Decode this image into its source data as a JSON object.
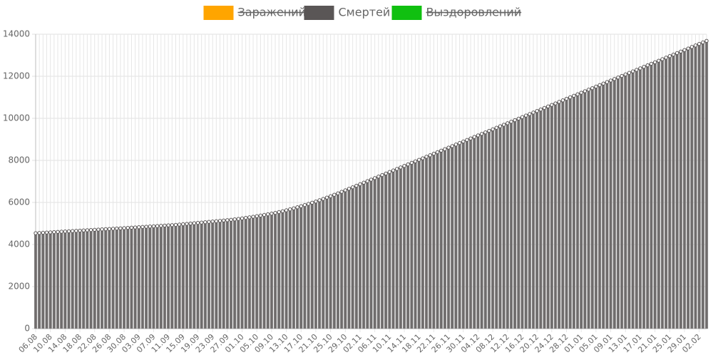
{
  "chart_data": {
    "type": "bar",
    "series": [
      {
        "name": "Заражений",
        "color": "#ffa500",
        "hidden": true
      },
      {
        "name": "Смертей",
        "color": "#5a5656",
        "hidden": false,
        "values": [
          4540,
          4550,
          4560,
          4570,
          4580,
          4590,
          4600,
          4610,
          4620,
          4630,
          4640,
          4650,
          4660,
          4670,
          4680,
          4690,
          4700,
          4710,
          4720,
          4730,
          4740,
          4750,
          4760,
          4770,
          4780,
          4791,
          4802,
          4813,
          4824,
          4835,
          4846,
          4857,
          4868,
          4879,
          4890,
          4901,
          4912,
          4923,
          4934,
          4950,
          4966,
          4982,
          4998,
          5014,
          5030,
          5046,
          5062,
          5078,
          5094,
          5110,
          5126,
          5142,
          5158,
          5176,
          5196,
          5218,
          5242,
          5267,
          5293,
          5320,
          5348,
          5377,
          5407,
          5438,
          5470,
          5505,
          5543,
          5584,
          5628,
          5674,
          5722,
          5772,
          5824,
          5878,
          5933,
          5989,
          6046,
          6106,
          6168,
          6232,
          6298,
          6366,
          6436,
          6507,
          6579,
          6651,
          6724,
          6796,
          6869,
          6941,
          7014,
          7086,
          7159,
          7231,
          7304,
          7376,
          7449,
          7521,
          7594,
          7666,
          7739,
          7811,
          7884,
          7956,
          8029,
          8101,
          8174,
          8246,
          8319,
          8391,
          8464,
          8536,
          8609,
          8681,
          8754,
          8826,
          8899,
          8971,
          9044,
          9116,
          9189,
          9261,
          9334,
          9406,
          9479,
          9551,
          9624,
          9696,
          9769,
          9841,
          9914,
          9986,
          10059,
          10131,
          10204,
          10276,
          10349,
          10421,
          10494,
          10566,
          10639,
          10711,
          10784,
          10856,
          10929,
          11001,
          11074,
          11146,
          11219,
          11291,
          11364,
          11436,
          11509,
          11581,
          11654,
          11726,
          11799,
          11871,
          11944,
          12016,
          12089,
          12161,
          12234,
          12306,
          12379,
          12451,
          12524,
          12596,
          12669,
          12741,
          12814,
          12886,
          12959,
          13031,
          13104,
          13176,
          13249,
          13321,
          13394,
          13466,
          13539,
          13611,
          13684
        ]
      },
      {
        "name": "Выздоровлений",
        "color": "#10c010",
        "hidden": true
      }
    ],
    "categories": [
      "06.08",
      null,
      null,
      null,
      "10.08",
      null,
      null,
      null,
      "14.08",
      null,
      null,
      null,
      "18.08",
      null,
      null,
      null,
      "22.08",
      null,
      null,
      null,
      "26.08",
      null,
      null,
      null,
      "30.08",
      null,
      null,
      null,
      "03.09",
      null,
      null,
      null,
      "07.09",
      null,
      null,
      null,
      "11.09",
      null,
      null,
      null,
      "15.09",
      null,
      null,
      null,
      "19.09",
      null,
      null,
      null,
      "23.09",
      null,
      null,
      null,
      "27.09",
      null,
      null,
      null,
      "01.10",
      null,
      null,
      null,
      "05.10",
      null,
      null,
      null,
      "09.10",
      null,
      null,
      null,
      "13.10",
      null,
      null,
      null,
      "17.10",
      null,
      null,
      null,
      "21.10",
      null,
      null,
      null,
      "25.10",
      null,
      null,
      null,
      "29.10",
      null,
      null,
      null,
      "02.11",
      null,
      null,
      null,
      "06.11",
      null,
      null,
      null,
      "10.11",
      null,
      null,
      null,
      "14.11",
      null,
      null,
      null,
      "18.11",
      null,
      null,
      null,
      "22.11",
      null,
      null,
      null,
      "26.11",
      null,
      null,
      null,
      "30.11",
      null,
      null,
      null,
      "04.12",
      null,
      null,
      null,
      "08.12",
      null,
      null,
      null,
      "12.12",
      null,
      null,
      null,
      "16.12",
      null,
      null,
      null,
      "20.12",
      null,
      null,
      null,
      "24.12",
      null,
      null,
      null,
      "28.12",
      null,
      null,
      null,
      "01.01",
      null,
      null,
      null,
      "05.01",
      null,
      null,
      null,
      "09.01",
      null,
      null,
      null,
      "13.01",
      null,
      null,
      null,
      "17.01",
      null,
      null,
      null,
      "21.01",
      null,
      null,
      null,
      "25.01",
      null,
      null,
      null,
      "29.01",
      null,
      null,
      null,
      "02.02",
      null,
      null
    ],
    "ylim": [
      0,
      14000
    ],
    "yticks": [
      0,
      2000,
      4000,
      6000,
      8000,
      10000,
      12000,
      14000
    ],
    "grid": true
  }
}
